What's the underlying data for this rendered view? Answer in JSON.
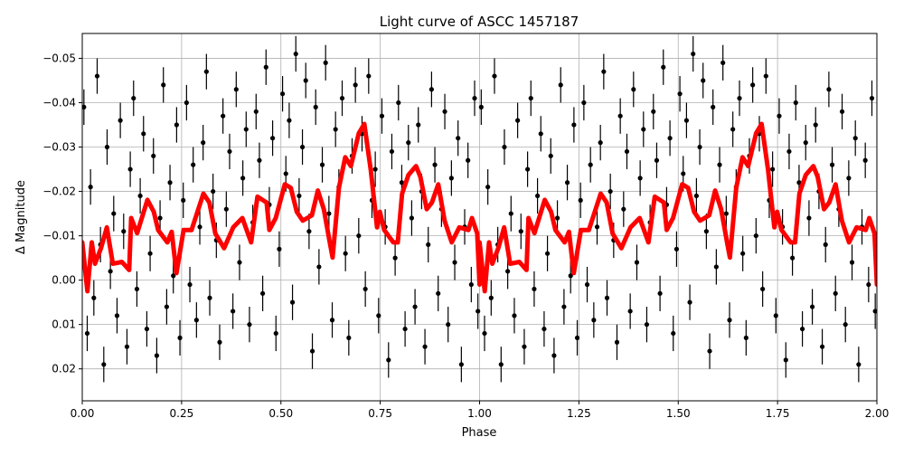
{
  "chart_data": {
    "type": "scatter",
    "title": "Light curve of ASCC 1457187",
    "xlabel": "Phase",
    "ylabel": "Δ Magnitude",
    "xlim": [
      0,
      2
    ],
    "ylim": [
      0.0272,
      -0.0556
    ],
    "y_inverted": true,
    "grid": true,
    "x_ticks": [
      "0.00",
      "0.25",
      "0.50",
      "0.75",
      "1.00",
      "1.25",
      "1.50",
      "1.75",
      "2.00"
    ],
    "x_tick_values": [
      0,
      0.25,
      0.5,
      0.75,
      1,
      1.25,
      1.5,
      1.75,
      2
    ],
    "y_ticks": [
      "−0.05",
      "−0.04",
      "−0.03",
      "−0.02",
      "−0.01",
      "0.00",
      "0.01",
      "0.02"
    ],
    "y_tick_values": [
      -0.05,
      -0.04,
      -0.03,
      -0.02,
      -0.01,
      0,
      0.01,
      0.02
    ],
    "observations": {
      "color": "#000000",
      "repeated_with_phase_offset": 1,
      "typical_err": 0.004,
      "mag": [
        -0.039,
        0.012,
        -0.021,
        0.004,
        -0.046,
        -0.008,
        0.019,
        -0.03,
        -0.002,
        -0.015,
        0.008,
        -0.036,
        -0.011,
        0.015,
        -0.025,
        -0.041,
        0.002,
        -0.019,
        -0.033,
        0.011,
        -0.006,
        -0.028,
        0.017,
        -0.014,
        -0.044,
        0.006,
        -0.022,
        -0.001,
        -0.035,
        0.013,
        -0.018,
        -0.04,
        0.001,
        -0.026,
        0.009,
        -0.012,
        -0.031,
        -0.047,
        0.004,
        -0.02,
        -0.009,
        0.014,
        -0.037,
        -0.016,
        -0.029,
        0.007,
        -0.043,
        -0.004,
        -0.023,
        -0.034,
        0.01,
        -0.013,
        -0.038,
        -0.027,
        0.003,
        -0.048,
        -0.017,
        -0.032,
        0.012,
        -0.007,
        -0.042,
        -0.024,
        -0.036,
        0.005,
        -0.051,
        -0.019,
        -0.03,
        -0.045,
        -0.011,
        0.016,
        -0.039,
        -0.003,
        -0.026,
        -0.049,
        -0.015,
        0.009,
        -0.034,
        -0.021,
        -0.041,
        -0.006,
        0.013,
        -0.028,
        -0.044,
        -0.01,
        -0.033,
        0.002,
        -0.046,
        -0.018,
        -0.025,
        0.008,
        -0.037,
        -0.012,
        0.018,
        -0.029,
        -0.005,
        -0.04,
        -0.022,
        0.011,
        -0.031,
        -0.014,
        0.006,
        -0.035,
        -0.02,
        0.015,
        -0.008,
        -0.043,
        -0.026,
        0.003,
        -0.016,
        -0.038,
        0.01,
        -0.023,
        -0.004,
        -0.032,
        0.019,
        -0.012,
        -0.027,
        0.001,
        -0.041,
        0.007
      ]
    },
    "model": {
      "color": "#ff0000",
      "repeated_with_phase_offset": 1,
      "phase": [
        0.0,
        0.013,
        0.024,
        0.032,
        0.047,
        0.062,
        0.077,
        0.1,
        0.118,
        0.123,
        0.138,
        0.164,
        0.18,
        0.191,
        0.214,
        0.225,
        0.237,
        0.255,
        0.275,
        0.305,
        0.32,
        0.335,
        0.357,
        0.38,
        0.403,
        0.425,
        0.441,
        0.464,
        0.471,
        0.487,
        0.51,
        0.525,
        0.54,
        0.555,
        0.578,
        0.593,
        0.608,
        0.623,
        0.63,
        0.646,
        0.662,
        0.676,
        0.696,
        0.71,
        0.726,
        0.742,
        0.749,
        0.76,
        0.783,
        0.794,
        0.805,
        0.821,
        0.84,
        0.851,
        0.867,
        0.88,
        0.896,
        0.912,
        0.93,
        0.949,
        0.972,
        0.981,
        0.994,
        1.0
      ],
      "mag": [
        -0.0085,
        0.0025,
        -0.0085,
        -0.0037,
        -0.0072,
        -0.0119,
        -0.0037,
        -0.0041,
        -0.0023,
        -0.014,
        -0.0106,
        -0.0181,
        -0.0154,
        -0.0113,
        -0.0085,
        -0.0109,
        -0.0016,
        -0.0113,
        -0.0113,
        -0.0195,
        -0.0175,
        -0.0105,
        -0.0072,
        -0.0119,
        -0.014,
        -0.0085,
        -0.0188,
        -0.0175,
        -0.0113,
        -0.014,
        -0.0216,
        -0.0208,
        -0.0154,
        -0.0134,
        -0.0146,
        -0.0202,
        -0.016,
        -0.0085,
        -0.0051,
        -0.0208,
        -0.0277,
        -0.0257,
        -0.0331,
        -0.0352,
        -0.0249,
        -0.0119,
        -0.0154,
        -0.0113,
        -0.0085,
        -0.0085,
        -0.0195,
        -0.0237,
        -0.0257,
        -0.0233,
        -0.016,
        -0.0175,
        -0.0216,
        -0.0134,
        -0.0085,
        -0.0119,
        -0.0113,
        -0.014,
        -0.0105,
        0.001
      ]
    }
  }
}
